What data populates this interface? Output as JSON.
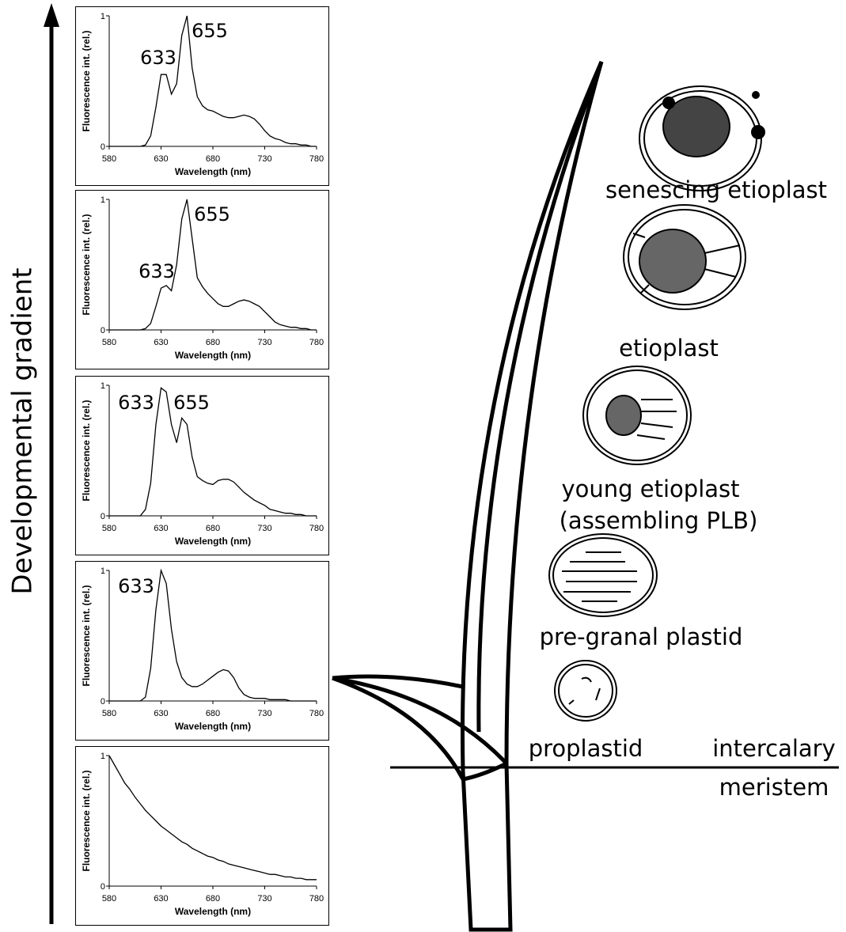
{
  "chart_data": [
    {
      "type": "line",
      "xlabel": "Wavelength (nm)",
      "ylabel": "Fluorescence int. (rel.)",
      "annotations": [
        "633",
        "655"
      ],
      "x": [
        580,
        585,
        590,
        595,
        600,
        605,
        610,
        615,
        620,
        625,
        630,
        635,
        640,
        645,
        650,
        655,
        660,
        665,
        670,
        675,
        680,
        685,
        690,
        695,
        700,
        705,
        710,
        715,
        720,
        725,
        730,
        735,
        740,
        745,
        750,
        755,
        760,
        765,
        770,
        775,
        780
      ],
      "values": [
        0,
        0,
        0,
        0,
        0,
        0,
        0,
        0.01,
        0.08,
        0.3,
        0.55,
        0.55,
        0.4,
        0.48,
        0.85,
        1.0,
        0.6,
        0.38,
        0.31,
        0.28,
        0.27,
        0.25,
        0.23,
        0.22,
        0.22,
        0.23,
        0.24,
        0.23,
        0.21,
        0.17,
        0.12,
        0.08,
        0.06,
        0.05,
        0.03,
        0.02,
        0.02,
        0.01,
        0.01,
        0,
        0
      ],
      "color": "#000000",
      "xlim": [
        580,
        780
      ],
      "xticks": [
        580,
        630,
        680,
        730,
        780
      ],
      "ylim": [
        0,
        1
      ],
      "yticks": [
        0,
        1
      ]
    },
    {
      "type": "line",
      "xlabel": "Wavelength (nm)",
      "ylabel": "Fluorescence int. (rel.)",
      "annotations": [
        "633",
        "655"
      ],
      "x": [
        580,
        585,
        590,
        595,
        600,
        605,
        610,
        615,
        620,
        625,
        630,
        635,
        640,
        645,
        650,
        655,
        660,
        665,
        670,
        675,
        680,
        685,
        690,
        695,
        700,
        705,
        710,
        715,
        720,
        725,
        730,
        735,
        740,
        745,
        750,
        755,
        760,
        765,
        770,
        775,
        780
      ],
      "values": [
        0,
        0,
        0,
        0,
        0,
        0,
        0,
        0.01,
        0.05,
        0.18,
        0.32,
        0.34,
        0.3,
        0.5,
        0.85,
        1.0,
        0.7,
        0.4,
        0.33,
        0.28,
        0.24,
        0.2,
        0.18,
        0.18,
        0.2,
        0.22,
        0.23,
        0.22,
        0.2,
        0.18,
        0.14,
        0.1,
        0.06,
        0.04,
        0.03,
        0.02,
        0.02,
        0.01,
        0.01,
        0,
        0
      ],
      "color": "#000000",
      "xlim": [
        580,
        780
      ],
      "xticks": [
        580,
        630,
        680,
        730,
        780
      ],
      "ylim": [
        0,
        1
      ],
      "yticks": [
        0,
        1
      ]
    },
    {
      "type": "line",
      "xlabel": "Wavelength (nm)",
      "ylabel": "Fluorescence int. (rel.)",
      "annotations": [
        "633",
        "655"
      ],
      "x": [
        580,
        585,
        590,
        595,
        600,
        605,
        610,
        615,
        620,
        625,
        630,
        635,
        640,
        645,
        650,
        655,
        660,
        665,
        670,
        675,
        680,
        685,
        690,
        695,
        700,
        705,
        710,
        715,
        720,
        725,
        730,
        735,
        740,
        745,
        750,
        755,
        760,
        765,
        770,
        775,
        780
      ],
      "values": [
        0,
        0,
        0,
        0,
        0,
        0,
        0,
        0.05,
        0.25,
        0.7,
        0.98,
        0.95,
        0.7,
        0.56,
        0.75,
        0.7,
        0.45,
        0.3,
        0.27,
        0.25,
        0.24,
        0.27,
        0.28,
        0.28,
        0.26,
        0.22,
        0.18,
        0.15,
        0.12,
        0.1,
        0.08,
        0.05,
        0.04,
        0.03,
        0.02,
        0.02,
        0.01,
        0.01,
        0,
        0,
        0
      ],
      "color": "#000000",
      "xlim": [
        580,
        780
      ],
      "xticks": [
        580,
        630,
        680,
        730,
        780
      ],
      "ylim": [
        0,
        1
      ],
      "yticks": [
        0,
        1
      ]
    },
    {
      "type": "line",
      "xlabel": "Wavelength (nm)",
      "ylabel": "Fluorescence int. (rel.)",
      "annotations": [
        "633"
      ],
      "x": [
        580,
        585,
        590,
        595,
        600,
        605,
        610,
        615,
        620,
        625,
        630,
        635,
        640,
        645,
        650,
        655,
        660,
        665,
        670,
        675,
        680,
        685,
        690,
        695,
        700,
        705,
        710,
        715,
        720,
        725,
        730,
        735,
        740,
        745,
        750,
        755,
        760,
        765,
        770,
        775,
        780
      ],
      "values": [
        0,
        0,
        0,
        0,
        0,
        0,
        0,
        0.03,
        0.25,
        0.7,
        1.0,
        0.9,
        0.55,
        0.3,
        0.18,
        0.13,
        0.11,
        0.11,
        0.13,
        0.16,
        0.19,
        0.22,
        0.24,
        0.23,
        0.18,
        0.1,
        0.05,
        0.03,
        0.02,
        0.02,
        0.02,
        0.01,
        0.01,
        0.01,
        0.01,
        0,
        0,
        0,
        0,
        0,
        0
      ],
      "color": "#000000",
      "xlim": [
        580,
        780
      ],
      "xticks": [
        580,
        630,
        680,
        730,
        780
      ],
      "ylim": [
        0,
        1
      ],
      "yticks": [
        0,
        1
      ]
    },
    {
      "type": "line",
      "xlabel": "Wavelength (nm)",
      "ylabel": "Fluorescence int. (rel.)",
      "x": [
        580,
        585,
        590,
        595,
        600,
        605,
        610,
        615,
        620,
        625,
        630,
        635,
        640,
        645,
        650,
        655,
        660,
        665,
        670,
        675,
        680,
        685,
        690,
        695,
        700,
        705,
        710,
        715,
        720,
        725,
        730,
        735,
        740,
        745,
        750,
        755,
        760,
        765,
        770,
        775,
        780
      ],
      "values": [
        1,
        0.93,
        0.86,
        0.79,
        0.74,
        0.68,
        0.63,
        0.58,
        0.54,
        0.5,
        0.46,
        0.43,
        0.4,
        0.37,
        0.34,
        0.32,
        0.29,
        0.27,
        0.25,
        0.23,
        0.22,
        0.2,
        0.19,
        0.17,
        0.16,
        0.15,
        0.14,
        0.13,
        0.12,
        0.11,
        0.1,
        0.09,
        0.09,
        0.08,
        0.07,
        0.07,
        0.06,
        0.06,
        0.05,
        0.05,
        0.05
      ],
      "color": "#000000",
      "xlim": [
        580,
        780
      ],
      "xticks": [
        580,
        630,
        680,
        730,
        780
      ],
      "ylim": [
        0,
        1
      ],
      "yticks": [
        0,
        1
      ]
    }
  ],
  "diagram": {
    "gradient_label": "Developmental gradient",
    "plastids": [
      {
        "label": "senescing etioplast"
      },
      {
        "label": "etioplast"
      },
      {
        "label": "young etioplast",
        "note": "(assembling PLB)"
      },
      {
        "label": "pre-granal plastid"
      },
      {
        "label": "proplastid"
      }
    ],
    "meristem": [
      "intercalary",
      "meristem"
    ]
  }
}
